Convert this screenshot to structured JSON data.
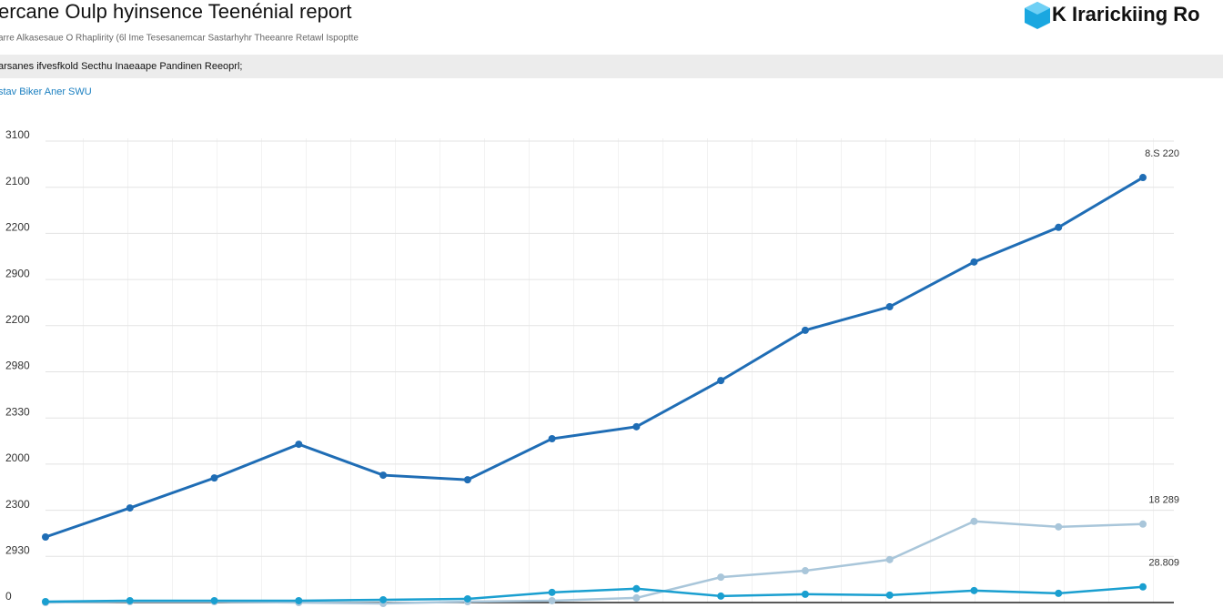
{
  "chart_data": {
    "type": "line",
    "title": "ercane Oulp hyinsence Teenénial report",
    "subtitle": "arre Alkasesaue O Rhaplirity (6l Ime Tesesanemcar Sastarhyhr Theeanre Retawl Ispoptte",
    "brand": "K Irarickiing Ro",
    "section": "arsanes ifvesfkold Secthu Inaeaape Pandinen Reeoprl;",
    "axis_label": "stav Biker Aner SWU",
    "categories": [
      null,
      null,
      null,
      null,
      null,
      null,
      null,
      null,
      null,
      null,
      null,
      null,
      null,
      null
    ],
    "series": [
      {
        "color": "#1f6db5",
        "values": [
          1.42,
          2.05,
          2.7,
          3.43,
          2.76,
          2.66,
          3.55,
          3.81,
          4.81,
          5.9,
          6.41,
          7.38,
          8.13,
          9.21
        ]
      },
      {
        "color": "#a9c6da",
        "values": [
          0,
          0.02,
          0.02,
          0,
          -0.02,
          0.02,
          0.04,
          0.1,
          0.55,
          0.69,
          0.93,
          1.76,
          1.64,
          1.7
        ]
      },
      {
        "color": "#1a9fd0",
        "values": [
          0.02,
          0.04,
          0.04,
          0.04,
          0.06,
          0.08,
          0.22,
          0.3,
          0.14,
          0.18,
          0.16,
          0.26,
          0.2,
          0.34
        ]
      }
    ],
    "annotations": [
      "8.S 220",
      "18 289",
      "28.809"
    ],
    "ylim": [
      0,
      10
    ],
    "yticks": [
      {
        "value": 0,
        "label": "0"
      },
      {
        "value": 1,
        "label": "2930"
      },
      {
        "value": 2,
        "label": "2300"
      },
      {
        "value": 3,
        "label": "2000"
      },
      {
        "value": 4,
        "label": "2330"
      },
      {
        "value": 5,
        "label": "2980"
      },
      {
        "value": 6,
        "label": "2200"
      },
      {
        "value": 7,
        "label": "2900"
      },
      {
        "value": 8,
        "label": "2200"
      },
      {
        "value": 9,
        "label": "2100"
      },
      {
        "value": 10,
        "label": "3100"
      }
    ],
    "grid": true
  }
}
